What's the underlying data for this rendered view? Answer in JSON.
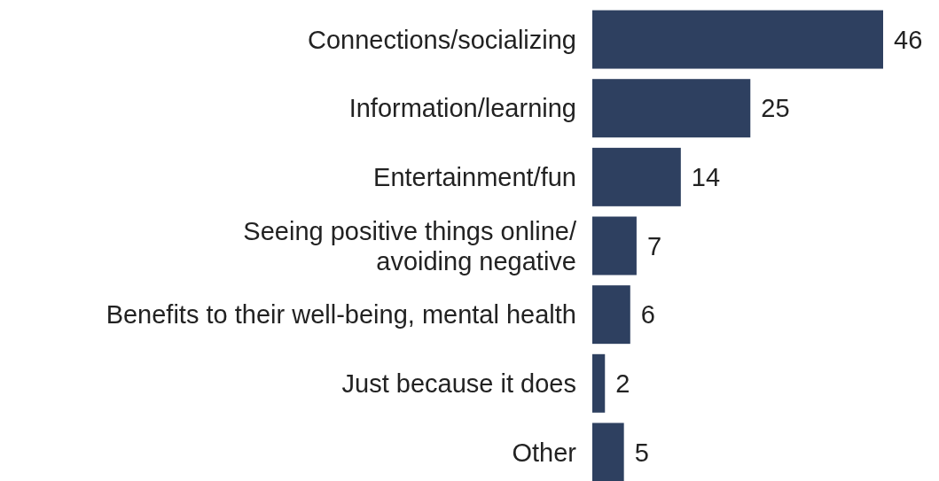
{
  "chart_data": {
    "type": "bar",
    "orientation": "horizontal",
    "categories": [
      "Connections/socializing",
      "Information/learning",
      "Entertainment/fun",
      "Seeing positive things online/\navoiding negative",
      "Benefits to their well-being, mental health",
      "Just because it does",
      "Other"
    ],
    "values": [
      46,
      25,
      14,
      7,
      6,
      2,
      5
    ],
    "color": "#2e4060",
    "data_labels": true
  }
}
